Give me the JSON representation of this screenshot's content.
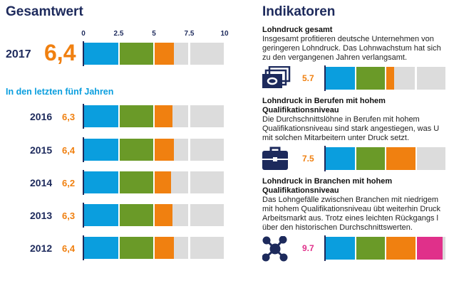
{
  "colors": {
    "blue": "#0a9ede",
    "green": "#6a9a28",
    "orange": "#f08010",
    "magenta": "#e0308a",
    "gray": "#dcdcdc",
    "navy": "#1d2a5c"
  },
  "left": {
    "title": "Gesamtwert",
    "subtitle": "In den letzten fünf Jahren",
    "main": {
      "year": "2017",
      "value_label": "6,4",
      "value": 6.4
    }
  },
  "right": {
    "title": "Indikatoren",
    "indicators": [
      {
        "title": "Lohndruck gesamt",
        "lines": [
          "Insgesamt profitieren deutsche Unternehmen von",
          "geringeren Lohndruck. Das Lohnwachstum hat sich",
          "zu den vergangenen Jahren verlangsamt."
        ],
        "icon": "money-icon",
        "value_label": "5.7",
        "value": 5.7
      },
      {
        "title": "Lohndruck in Berufen mit hohem Qualifikationsniveau",
        "lines": [
          "Die Durchschnittslöhne in Berufen mit hohem",
          "Qualifikationsniveau sind stark angestiegen, was U",
          "mit solchen Mitarbeitern unter Druck setzt."
        ],
        "icon": "briefcase-icon",
        "value_label": "7.5",
        "value": 7.5
      },
      {
        "title": "Lohndruck in Branchen mit hohem Qualifikationsniveau",
        "lines": [
          "Das Lohngefälle zwischen Branchen mit niedrigem",
          "mit hohem Qualifikationsniveau übt weiterhin Druck",
          "Arbeitsmarkt aus. Trotz eines leichten Rückgangs l",
          "über den historischen Durchschnittswerten."
        ],
        "icon": "network-icon",
        "value_label": "9.7",
        "value": 9.7
      }
    ]
  },
  "chart_data": [
    {
      "type": "bar",
      "orientation": "horizontal",
      "stacked_bands": [
        [
          0,
          2.5,
          "#0a9ede"
        ],
        [
          2.5,
          5,
          "#6a9a28"
        ],
        [
          5,
          7.5,
          "#f08010"
        ],
        [
          7.5,
          10,
          "#e0308a"
        ]
      ],
      "xlim": [
        0,
        10
      ],
      "ticks": [
        "0",
        "2.5",
        "5",
        "7.5",
        "10"
      ],
      "categories": [
        "2017",
        "2016",
        "2015",
        "2014",
        "2013",
        "2012"
      ],
      "values": [
        6.4,
        6.3,
        6.4,
        6.2,
        6.3,
        6.4
      ],
      "value_labels": [
        "6,4",
        "6,3",
        "6,4",
        "6,2",
        "6,3",
        "6,4"
      ]
    },
    {
      "type": "bar",
      "orientation": "horizontal",
      "xlim": [
        0,
        10
      ],
      "categories": [
        "Lohndruck gesamt",
        "Lohndruck in Berufen mit hohem Qualifikationsniveau",
        "Lohndruck in Branchen mit hohem Qualifikationsniveau"
      ],
      "values": [
        5.7,
        7.5,
        9.7
      ]
    }
  ]
}
